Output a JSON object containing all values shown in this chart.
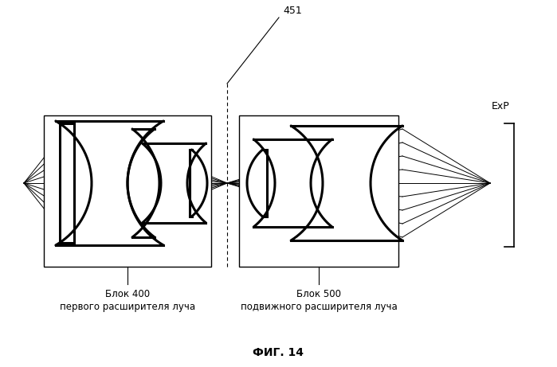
{
  "fig_width": 6.99,
  "fig_height": 4.61,
  "dpi": 100,
  "bg_color": "#ffffff",
  "line_color": "#000000",
  "title": "ФИГ. 14",
  "label1_line1": "Блок 400",
  "label1_line2": "первого расширителя луча",
  "label2_line1": "Блок 500",
  "label2_line2": "подвижного расширителя луча",
  "label_451": "451",
  "label_exp": "ExP"
}
